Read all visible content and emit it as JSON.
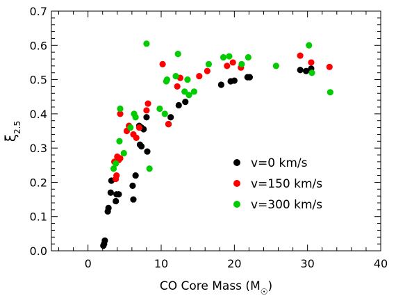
{
  "chart_data": {
    "type": "scatter",
    "title": "",
    "xlabel_prefix": "CO Core Mass (M",
    "xlabel_suffix": ")",
    "xlabel_symbol": "sun",
    "ylabel_base": "ξ",
    "ylabel_sub": "2.5",
    "xlim": [
      -5,
      40
    ],
    "ylim": [
      0,
      0.7
    ],
    "xticks": [
      0,
      10,
      20,
      30,
      40
    ],
    "xtick_labels": [
      "0",
      "10",
      "20",
      "30",
      "40"
    ],
    "yticks": [
      0.0,
      0.1,
      0.2,
      0.3,
      0.4,
      0.5,
      0.6,
      0.7
    ],
    "ytick_labels": [
      "0.0",
      "0.1",
      "0.2",
      "0.3",
      "0.4",
      "0.5",
      "0.6",
      "0.7"
    ],
    "grid": false,
    "legend_position": "middle-right",
    "series": [
      {
        "name": "v=0 km/s",
        "color": "#000000",
        "points": [
          [
            2.1,
            0.015
          ],
          [
            2.2,
            0.02
          ],
          [
            2.3,
            0.03
          ],
          [
            2.7,
            0.115
          ],
          [
            2.8,
            0.125
          ],
          [
            3.1,
            0.17
          ],
          [
            3.2,
            0.205
          ],
          [
            3.8,
            0.145
          ],
          [
            3.9,
            0.165
          ],
          [
            4.2,
            0.165
          ],
          [
            6.2,
            0.15
          ],
          [
            6.1,
            0.19
          ],
          [
            6.5,
            0.22
          ],
          [
            7.1,
            0.31
          ],
          [
            7.3,
            0.305
          ],
          [
            7.0,
            0.365
          ],
          [
            7.3,
            0.36
          ],
          [
            7.6,
            0.355
          ],
          [
            8.0,
            0.39
          ],
          [
            8.1,
            0.29
          ],
          [
            11.0,
            0.37
          ],
          [
            11.3,
            0.39
          ],
          [
            12.4,
            0.425
          ],
          [
            13.3,
            0.435
          ],
          [
            18.2,
            0.485
          ],
          [
            19.5,
            0.495
          ],
          [
            20.0,
            0.497
          ],
          [
            21.8,
            0.507
          ],
          [
            22.1,
            0.507
          ],
          [
            29.0,
            0.528
          ],
          [
            29.8,
            0.525
          ],
          [
            30.5,
            0.532
          ]
        ]
      },
      {
        "name": "v=150 km/s",
        "color": "#ff0000",
        "points": [
          [
            3.6,
            0.26
          ],
          [
            3.8,
            0.21
          ],
          [
            3.9,
            0.22
          ],
          [
            4.0,
            0.275
          ],
          [
            4.2,
            0.265
          ],
          [
            4.4,
            0.27
          ],
          [
            4.4,
            0.4
          ],
          [
            5.3,
            0.35
          ],
          [
            5.6,
            0.365
          ],
          [
            6.2,
            0.34
          ],
          [
            6.6,
            0.33
          ],
          [
            7.0,
            0.36
          ],
          [
            8.0,
            0.41
          ],
          [
            8.2,
            0.43
          ],
          [
            10.2,
            0.545
          ],
          [
            11.0,
            0.37
          ],
          [
            12.2,
            0.48
          ],
          [
            12.6,
            0.505
          ],
          [
            15.2,
            0.51
          ],
          [
            16.3,
            0.525
          ],
          [
            19.0,
            0.54
          ],
          [
            19.8,
            0.55
          ],
          [
            20.9,
            0.535
          ],
          [
            29.0,
            0.57
          ],
          [
            30.5,
            0.55
          ],
          [
            33.0,
            0.537
          ]
        ]
      },
      {
        "name": "v=300 km/s",
        "color": "#00cc00",
        "points": [
          [
            3.5,
            0.24
          ],
          [
            3.8,
            0.255
          ],
          [
            4.3,
            0.32
          ],
          [
            4.4,
            0.415
          ],
          [
            4.9,
            0.285
          ],
          [
            5.8,
            0.36
          ],
          [
            6.3,
            0.4
          ],
          [
            6.5,
            0.39
          ],
          [
            8.0,
            0.605
          ],
          [
            8.4,
            0.24
          ],
          [
            9.8,
            0.415
          ],
          [
            10.5,
            0.4
          ],
          [
            10.7,
            0.495
          ],
          [
            10.8,
            0.5
          ],
          [
            12.0,
            0.51
          ],
          [
            12.3,
            0.575
          ],
          [
            13.2,
            0.465
          ],
          [
            13.6,
            0.5
          ],
          [
            13.8,
            0.455
          ],
          [
            14.5,
            0.465
          ],
          [
            16.5,
            0.545
          ],
          [
            18.5,
            0.565
          ],
          [
            19.3,
            0.568
          ],
          [
            21.0,
            0.545
          ],
          [
            21.9,
            0.565
          ],
          [
            25.7,
            0.54
          ],
          [
            30.2,
            0.6
          ],
          [
            30.6,
            0.52
          ],
          [
            33.1,
            0.463
          ]
        ]
      }
    ]
  }
}
